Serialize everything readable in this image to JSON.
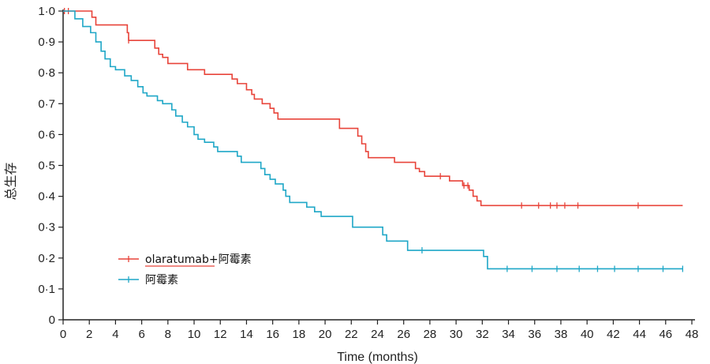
{
  "chart_data": {
    "type": "line",
    "subtype": "kaplan-meier",
    "xlabel": "Time (months)",
    "ylabel": "总生存",
    "xlim": [
      0,
      48
    ],
    "ylim": [
      0,
      1.0
    ],
    "x_ticks": [
      0,
      2,
      4,
      6,
      8,
      10,
      12,
      14,
      16,
      18,
      20,
      22,
      24,
      26,
      28,
      30,
      32,
      34,
      36,
      38,
      40,
      42,
      44,
      46,
      48
    ],
    "y_ticks": [
      "0",
      "0·1",
      "0·2",
      "0·3",
      "0·4",
      "0·5",
      "0·6",
      "0·7",
      "0·8",
      "0·9",
      "1·0"
    ],
    "grid": false,
    "legend_position": "lower-left",
    "series": [
      {
        "name": "olaratumab+阿霉素",
        "color": "#e8443a",
        "steps": [
          [
            0,
            1.0
          ],
          [
            1.9,
            1.0
          ],
          [
            2.2,
            0.98
          ],
          [
            2.5,
            0.955
          ],
          [
            4.6,
            0.955
          ],
          [
            4.9,
            0.93
          ],
          [
            5.0,
            0.905
          ],
          [
            6.8,
            0.905
          ],
          [
            7.0,
            0.88
          ],
          [
            7.3,
            0.86
          ],
          [
            7.6,
            0.85
          ],
          [
            8.0,
            0.83
          ],
          [
            9.3,
            0.83
          ],
          [
            9.5,
            0.81
          ],
          [
            10.6,
            0.81
          ],
          [
            10.8,
            0.795
          ],
          [
            12.6,
            0.795
          ],
          [
            12.9,
            0.78
          ],
          [
            13.3,
            0.765
          ],
          [
            14.0,
            0.745
          ],
          [
            14.4,
            0.73
          ],
          [
            14.6,
            0.715
          ],
          [
            15.2,
            0.7
          ],
          [
            15.8,
            0.685
          ],
          [
            16.1,
            0.67
          ],
          [
            16.4,
            0.65
          ],
          [
            20.8,
            0.65
          ],
          [
            21.1,
            0.62
          ],
          [
            22.1,
            0.62
          ],
          [
            22.5,
            0.595
          ],
          [
            22.8,
            0.57
          ],
          [
            23.1,
            0.545
          ],
          [
            23.3,
            0.525
          ],
          [
            25.1,
            0.525
          ],
          [
            25.3,
            0.51
          ],
          [
            26.5,
            0.51
          ],
          [
            26.9,
            0.49
          ],
          [
            27.2,
            0.48
          ],
          [
            27.6,
            0.465
          ],
          [
            29.2,
            0.465
          ],
          [
            29.5,
            0.45
          ],
          [
            30.2,
            0.45
          ],
          [
            30.5,
            0.435
          ],
          [
            31.0,
            0.42
          ],
          [
            31.3,
            0.4
          ],
          [
            31.6,
            0.385
          ],
          [
            31.9,
            0.37
          ],
          [
            47.3,
            0.37
          ]
        ],
        "censor_x": [
          0.1,
          0.4,
          5.0,
          28.8,
          30.6,
          30.9,
          35.0,
          36.3,
          37.2,
          37.7,
          38.3,
          39.3,
          43.9
        ]
      },
      {
        "name": "阿霉素",
        "color": "#1fa7c7",
        "steps": [
          [
            0,
            1.0
          ],
          [
            0.9,
            0.975
          ],
          [
            1.5,
            0.95
          ],
          [
            2.1,
            0.93
          ],
          [
            2.5,
            0.9
          ],
          [
            2.9,
            0.87
          ],
          [
            3.2,
            0.845
          ],
          [
            3.6,
            0.82
          ],
          [
            4.0,
            0.81
          ],
          [
            4.7,
            0.79
          ],
          [
            5.2,
            0.775
          ],
          [
            5.7,
            0.755
          ],
          [
            6.1,
            0.735
          ],
          [
            6.4,
            0.725
          ],
          [
            7.2,
            0.71
          ],
          [
            7.6,
            0.7
          ],
          [
            8.3,
            0.68
          ],
          [
            8.6,
            0.66
          ],
          [
            9.1,
            0.64
          ],
          [
            9.5,
            0.625
          ],
          [
            10.0,
            0.6
          ],
          [
            10.3,
            0.585
          ],
          [
            10.8,
            0.575
          ],
          [
            11.5,
            0.56
          ],
          [
            11.8,
            0.545
          ],
          [
            13.3,
            0.53
          ],
          [
            13.6,
            0.51
          ],
          [
            14.9,
            0.51
          ],
          [
            15.1,
            0.49
          ],
          [
            15.4,
            0.47
          ],
          [
            15.8,
            0.455
          ],
          [
            16.2,
            0.44
          ],
          [
            16.8,
            0.42
          ],
          [
            17.0,
            0.4
          ],
          [
            17.3,
            0.38
          ],
          [
            18.6,
            0.365
          ],
          [
            19.2,
            0.35
          ],
          [
            19.7,
            0.335
          ],
          [
            21.9,
            0.335
          ],
          [
            22.1,
            0.3
          ],
          [
            24.2,
            0.3
          ],
          [
            24.4,
            0.275
          ],
          [
            24.7,
            0.255
          ],
          [
            26.1,
            0.255
          ],
          [
            26.3,
            0.225
          ],
          [
            32.0,
            0.225
          ],
          [
            32.1,
            0.205
          ],
          [
            32.4,
            0.165
          ],
          [
            47.3,
            0.165
          ]
        ],
        "censor_x": [
          27.4,
          33.9,
          35.8,
          37.7,
          39.4,
          40.8,
          42.1,
          43.9,
          45.8,
          47.3
        ]
      }
    ]
  }
}
